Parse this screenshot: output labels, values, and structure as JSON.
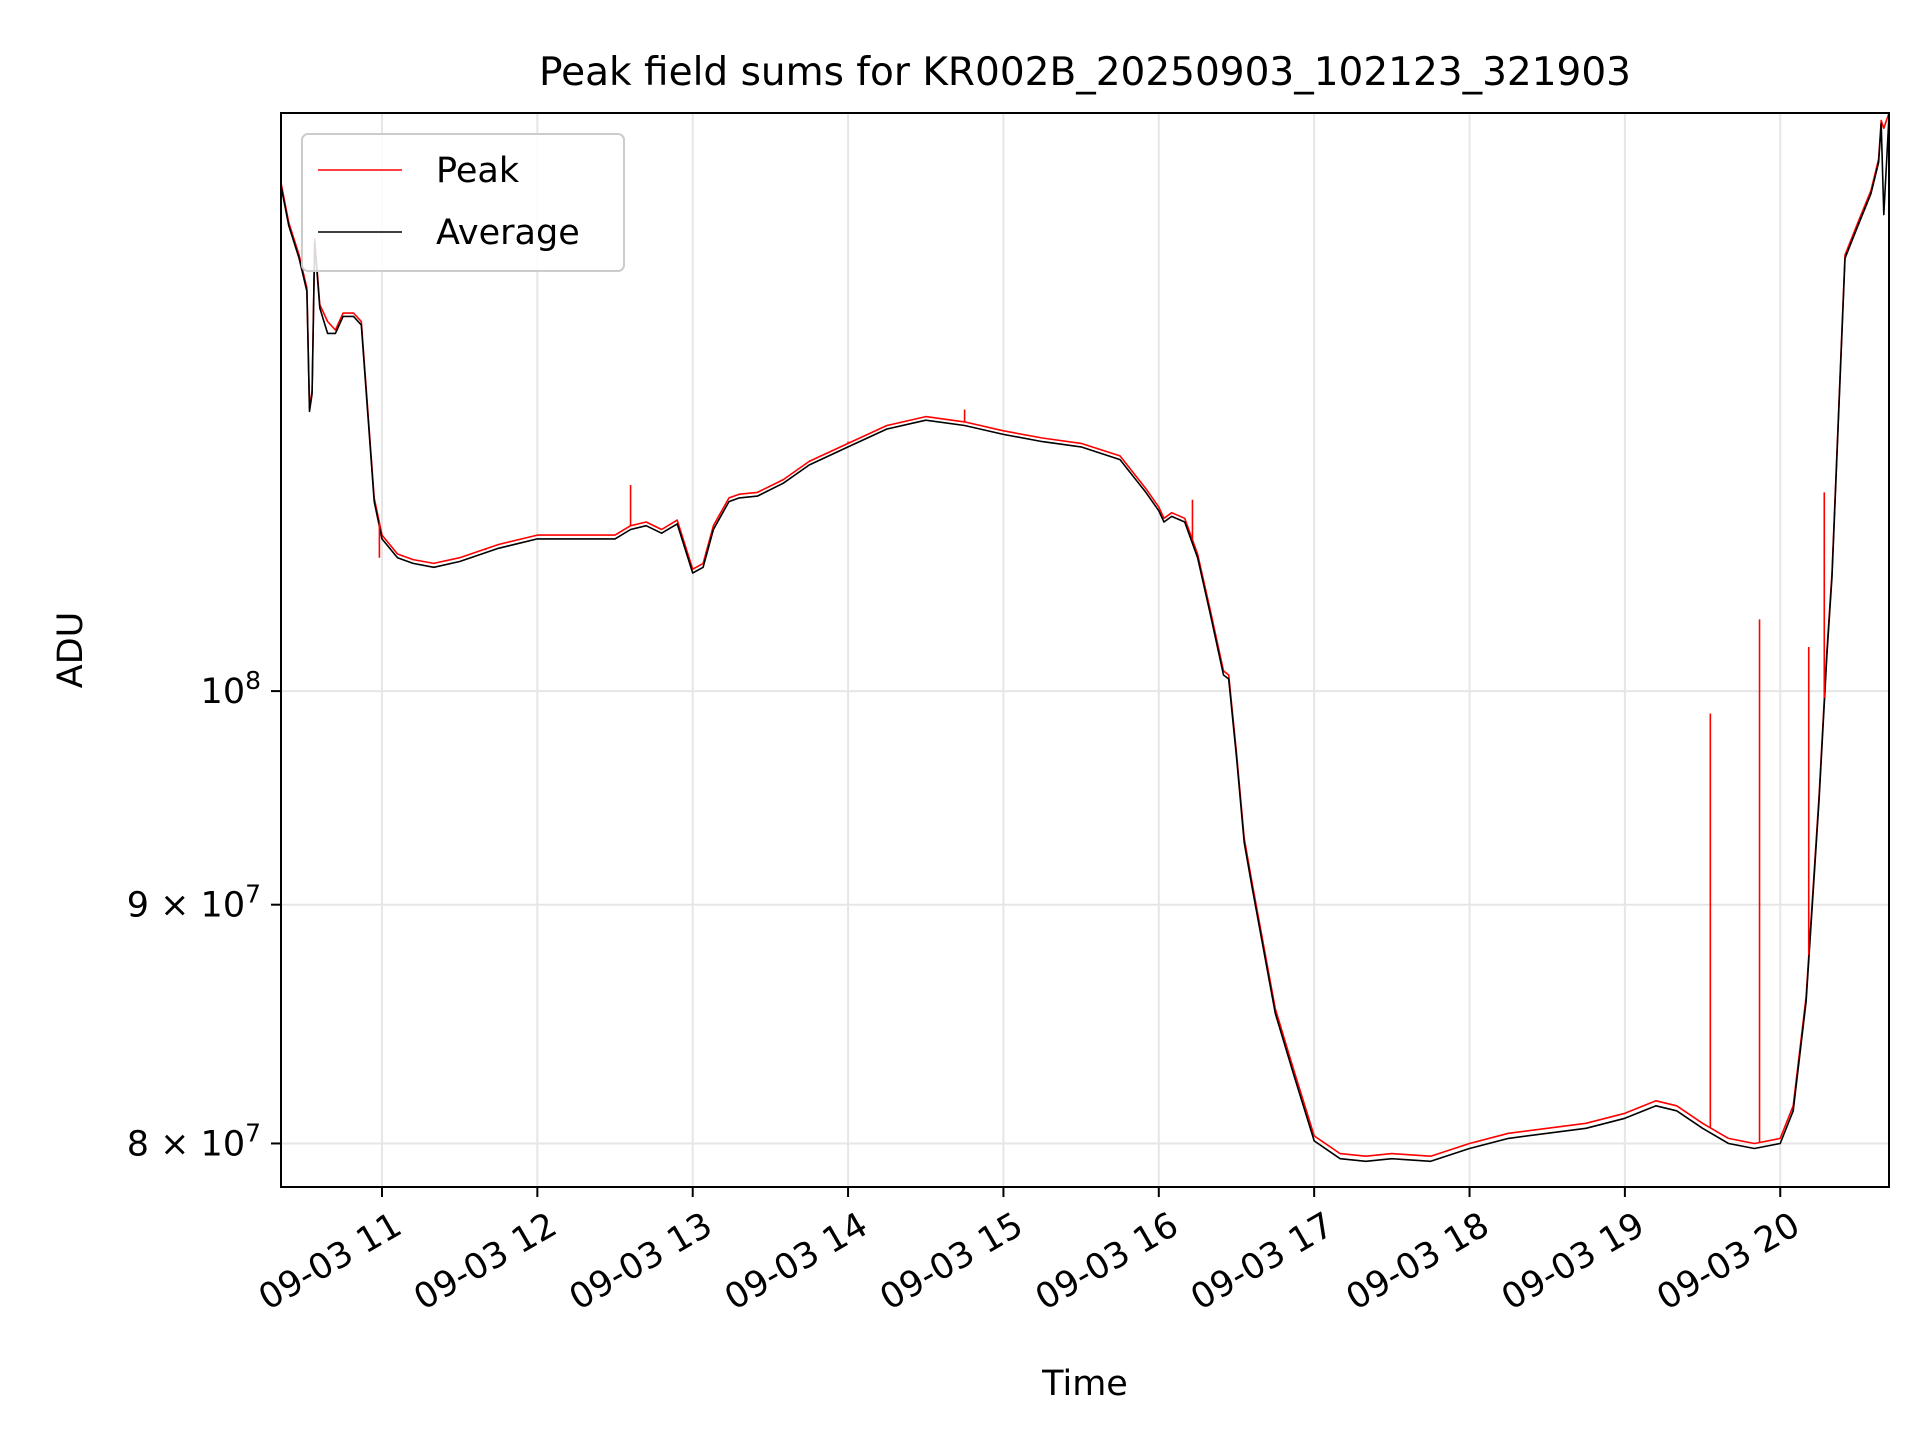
{
  "chart_data": {
    "type": "line",
    "title": "Peak field sums for KR002B_20250903_102123_321903",
    "xlabel": "Time",
    "ylabel": "ADU",
    "yscale": "log",
    "grid": true,
    "legend_position": "upper-left",
    "xlim": [
      "2025-09-03 10:21",
      "2025-09-03 20:42"
    ],
    "ylim": [
      78300000,
      133000000
    ],
    "x_ticks": [
      "09-03 11",
      "09-03 12",
      "09-03 13",
      "09-03 14",
      "09-03 15",
      "09-03 16",
      "09-03 17",
      "09-03 18",
      "09-03 19",
      "09-03 20"
    ],
    "y_ticks": [
      {
        "value": 80000000,
        "mantissa": "8",
        "exponent": "7"
      },
      {
        "value": 90000000,
        "mantissa": "9",
        "exponent": "7"
      },
      {
        "value": 100000000,
        "mantissa": "",
        "exponent": "8"
      }
    ],
    "series": [
      {
        "name": "Peak",
        "color": "#ff0000",
        "x": [
          "2025-09-03 10:21",
          "2025-09-03 10:24",
          "2025-09-03 10:28",
          "2025-09-03 10:31",
          "2025-09-03 10:32",
          "2025-09-03 10:33",
          "2025-09-03 10:34",
          "2025-09-03 10:36",
          "2025-09-03 10:39",
          "2025-09-03 10:42",
          "2025-09-03 10:45",
          "2025-09-03 10:49",
          "2025-09-03 10:52",
          "2025-09-03 10:57",
          "2025-09-03 11:00",
          "2025-09-03 11:06",
          "2025-09-03 11:12",
          "2025-09-03 11:20",
          "2025-09-03 11:30",
          "2025-09-03 11:45",
          "2025-09-03 12:00",
          "2025-09-03 12:15",
          "2025-09-03 12:30",
          "2025-09-03 12:36",
          "2025-09-03 12:42",
          "2025-09-03 12:48",
          "2025-09-03 12:54",
          "2025-09-03 13:00",
          "2025-09-03 13:04",
          "2025-09-03 13:08",
          "2025-09-03 13:12",
          "2025-09-03 13:14",
          "2025-09-03 13:18",
          "2025-09-03 13:25",
          "2025-09-03 13:35",
          "2025-09-03 13:45",
          "2025-09-03 14:00",
          "2025-09-03 14:15",
          "2025-09-03 14:30",
          "2025-09-03 14:45",
          "2025-09-03 15:00",
          "2025-09-03 15:15",
          "2025-09-03 15:30",
          "2025-09-03 15:45",
          "2025-09-03 15:55",
          "2025-09-03 16:00",
          "2025-09-03 16:02",
          "2025-09-03 16:05",
          "2025-09-03 16:10",
          "2025-09-03 16:15",
          "2025-09-03 16:20",
          "2025-09-03 16:25",
          "2025-09-03 16:27",
          "2025-09-03 16:30",
          "2025-09-03 16:33",
          "2025-09-03 16:36",
          "2025-09-03 16:40",
          "2025-09-03 16:45",
          "2025-09-03 16:52",
          "2025-09-03 17:00",
          "2025-09-03 17:10",
          "2025-09-03 17:20",
          "2025-09-03 17:30",
          "2025-09-03 17:45",
          "2025-09-03 18:00",
          "2025-09-03 18:15",
          "2025-09-03 18:30",
          "2025-09-03 18:45",
          "2025-09-03 19:00",
          "2025-09-03 19:12",
          "2025-09-03 19:20",
          "2025-09-03 19:30",
          "2025-09-03 19:40",
          "2025-09-03 19:50",
          "2025-09-03 20:00",
          "2025-09-03 20:05",
          "2025-09-03 20:10",
          "2025-09-03 20:15",
          "2025-09-03 20:18",
          "2025-09-03 20:20",
          "2025-09-03 20:25",
          "2025-09-03 20:30",
          "2025-09-03 20:35",
          "2025-09-03 20:38",
          "2025-09-03 20:39",
          "2025-09-03 20:40",
          "2025-09-03 20:42"
        ],
        "y": [
          128500000,
          126000000,
          124000000,
          122000000,
          115000000,
          116000000,
          125000000,
          121000000,
          120000000,
          119500000,
          120500000,
          120500000,
          120000000,
          110000000,
          108000000,
          107000000,
          106700000,
          106500000,
          106800000,
          107500000,
          108000000,
          108000000,
          108000000,
          108500000,
          108700000,
          108300000,
          108800000,
          106200000,
          106500000,
          108500000,
          109500000,
          110000000,
          110200000,
          110300000,
          111000000,
          112000000,
          113000000,
          114000000,
          114500000,
          114200000,
          113700000,
          113300000,
          113000000,
          112300000,
          110500000,
          109500000,
          108900000,
          109200000,
          108900000,
          107000000,
          104000000,
          101000000,
          100800000,
          97000000,
          93000000,
          91000000,
          88500000,
          85500000,
          83000000,
          80300000,
          79600000,
          79500000,
          79600000,
          79500000,
          80000000,
          80400000,
          80600000,
          80800000,
          81200000,
          81700000,
          81500000,
          80800000,
          80200000,
          80000000,
          80200000,
          81500000,
          86000000,
          95000000,
          102000000,
          106000000,
          124000000,
          126000000,
          128000000,
          130000000,
          132500000,
          132000000,
          133000000
        ]
      },
      {
        "name": "Average",
        "color": "#000000",
        "x": [
          "2025-09-03 10:21",
          "2025-09-03 10:24",
          "2025-09-03 10:28",
          "2025-09-03 10:31",
          "2025-09-03 10:32",
          "2025-09-03 10:33",
          "2025-09-03 10:34",
          "2025-09-03 10:36",
          "2025-09-03 10:39",
          "2025-09-03 10:42",
          "2025-09-03 10:45",
          "2025-09-03 10:49",
          "2025-09-03 10:52",
          "2025-09-03 10:57",
          "2025-09-03 11:00",
          "2025-09-03 11:06",
          "2025-09-03 11:12",
          "2025-09-03 11:20",
          "2025-09-03 11:30",
          "2025-09-03 11:45",
          "2025-09-03 12:00",
          "2025-09-03 12:15",
          "2025-09-03 12:30",
          "2025-09-03 12:36",
          "2025-09-03 12:42",
          "2025-09-03 12:48",
          "2025-09-03 12:54",
          "2025-09-03 13:00",
          "2025-09-03 13:04",
          "2025-09-03 13:08",
          "2025-09-03 13:12",
          "2025-09-03 13:14",
          "2025-09-03 13:18",
          "2025-09-03 13:25",
          "2025-09-03 13:35",
          "2025-09-03 13:45",
          "2025-09-03 14:00",
          "2025-09-03 14:15",
          "2025-09-03 14:30",
          "2025-09-03 14:45",
          "2025-09-03 15:00",
          "2025-09-03 15:15",
          "2025-09-03 15:30",
          "2025-09-03 15:45",
          "2025-09-03 15:55",
          "2025-09-03 16:00",
          "2025-09-03 16:02",
          "2025-09-03 16:05",
          "2025-09-03 16:10",
          "2025-09-03 16:15",
          "2025-09-03 16:20",
          "2025-09-03 16:25",
          "2025-09-03 16:27",
          "2025-09-03 16:30",
          "2025-09-03 16:33",
          "2025-09-03 16:36",
          "2025-09-03 16:40",
          "2025-09-03 16:45",
          "2025-09-03 16:52",
          "2025-09-03 17:00",
          "2025-09-03 17:10",
          "2025-09-03 17:20",
          "2025-09-03 17:30",
          "2025-09-03 17:45",
          "2025-09-03 18:00",
          "2025-09-03 18:15",
          "2025-09-03 18:30",
          "2025-09-03 18:45",
          "2025-09-03 19:00",
          "2025-09-03 19:12",
          "2025-09-03 19:20",
          "2025-09-03 19:30",
          "2025-09-03 19:40",
          "2025-09-03 19:50",
          "2025-09-03 20:00",
          "2025-09-03 20:05",
          "2025-09-03 20:10",
          "2025-09-03 20:15",
          "2025-09-03 20:18",
          "2025-09-03 20:20",
          "2025-09-03 20:25",
          "2025-09-03 20:30",
          "2025-09-03 20:35",
          "2025-09-03 20:38",
          "2025-09-03 20:39",
          "2025-09-03 20:40",
          "2025-09-03 20:42"
        ],
        "y": [
          128300000,
          125800000,
          123800000,
          121800000,
          114800000,
          115800000,
          124800000,
          120800000,
          119300000,
          119300000,
          120300000,
          120300000,
          119800000,
          109800000,
          107800000,
          106800000,
          106500000,
          106300000,
          106600000,
          107300000,
          107800000,
          107800000,
          107800000,
          108300000,
          108500000,
          108100000,
          108600000,
          106000000,
          106300000,
          108300000,
          109300000,
          109800000,
          110000000,
          110100000,
          110800000,
          111800000,
          112800000,
          113800000,
          114300000,
          114000000,
          113500000,
          113100000,
          112800000,
          112100000,
          110300000,
          109300000,
          108700000,
          109000000,
          108700000,
          106800000,
          103800000,
          100800000,
          100600000,
          96800000,
          92800000,
          90800000,
          88300000,
          85300000,
          82800000,
          80100000,
          79400000,
          79300000,
          79400000,
          79300000,
          79800000,
          80200000,
          80400000,
          80600000,
          81000000,
          81500000,
          81300000,
          80600000,
          80000000,
          79800000,
          80000000,
          81300000,
          85800000,
          94800000,
          101800000,
          105800000,
          123800000,
          125800000,
          127800000,
          129800000,
          132300000,
          126500000,
          132800000
        ]
      }
    ],
    "spikes": [
      {
        "series": "Peak",
        "x": "2025-09-03 10:59",
        "y": 106800000
      },
      {
        "series": "Peak",
        "x": "2025-09-03 11:40",
        "y": 107200000
      },
      {
        "series": "Peak",
        "x": "2025-09-03 12:36",
        "y": 110700000
      },
      {
        "series": "Peak",
        "x": "2025-09-03 14:00",
        "y": 113100000
      },
      {
        "series": "Peak",
        "x": "2025-09-03 14:45",
        "y": 114900000
      },
      {
        "series": "Peak",
        "x": "2025-09-03 16:13",
        "y": 109900000
      },
      {
        "series": "Peak",
        "x": "2025-09-03 19:33",
        "y": 98900000
      },
      {
        "series": "Peak",
        "x": "2025-09-03 19:52",
        "y": 103600000
      },
      {
        "series": "Peak",
        "x": "2025-09-03 20:11",
        "y": 102200000
      },
      {
        "series": "Peak",
        "x": "2025-09-03 20:17",
        "y": 110300000
      }
    ]
  }
}
